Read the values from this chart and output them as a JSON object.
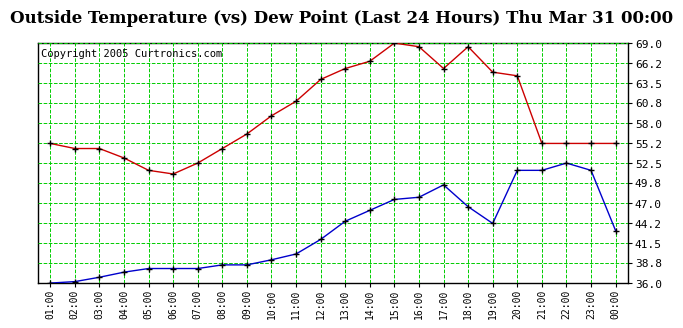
{
  "title": "Outside Temperature (vs) Dew Point (Last 24 Hours) Thu Mar 31 00:00",
  "copyright": "Copyright 2005 Curtronics.com",
  "x_labels": [
    "01:00",
    "02:00",
    "03:00",
    "04:00",
    "05:00",
    "06:00",
    "07:00",
    "08:00",
    "09:00",
    "10:00",
    "11:00",
    "12:00",
    "13:00",
    "14:00",
    "15:00",
    "16:00",
    "17:00",
    "18:00",
    "19:00",
    "20:00",
    "21:00",
    "22:00",
    "23:00",
    "00:00"
  ],
  "red_data": [
    55.2,
    54.5,
    54.5,
    53.2,
    51.5,
    51.0,
    52.5,
    54.5,
    56.5,
    59.0,
    61.0,
    64.0,
    65.5,
    66.5,
    69.0,
    68.5,
    65.5,
    68.5,
    65.0,
    64.5,
    55.2,
    55.2,
    55.2,
    55.2
  ],
  "blue_data": [
    36.0,
    36.2,
    36.8,
    37.5,
    38.0,
    38.0,
    38.0,
    38.5,
    38.5,
    39.2,
    40.0,
    42.0,
    44.5,
    46.0,
    47.5,
    47.8,
    49.5,
    46.5,
    44.2,
    51.5,
    51.5,
    52.5,
    51.5,
    43.2
  ],
  "red_color": "#cc0000",
  "blue_color": "#0000cc",
  "bg_color": "#ffffff",
  "grid_color": "#00cc00",
  "plot_bg": "#ffffff",
  "y_ticks": [
    36.0,
    38.8,
    41.5,
    44.2,
    47.0,
    49.8,
    52.5,
    55.2,
    58.0,
    60.8,
    63.5,
    66.2,
    69.0
  ],
  "ylim": [
    36.0,
    69.0
  ],
  "title_fontsize": 12,
  "copyright_fontsize": 7.5
}
